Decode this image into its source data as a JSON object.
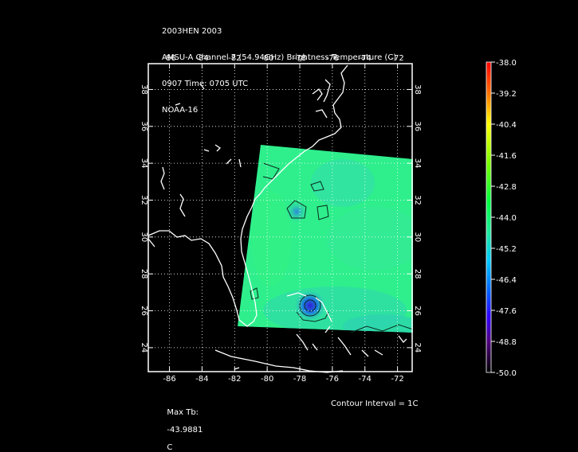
{
  "header": {
    "line1": "2003HEN 2003",
    "line2": "AMSU-A Channel 7 (54.94GHz) Brightness Temperature (C)",
    "line3": "0907 Time: 0705 UTC",
    "line4": "NOAA-16"
  },
  "map": {
    "lon_ticks": [
      "-86",
      "-84",
      "-82",
      "-80",
      "-78",
      "-76",
      "-74",
      "-72"
    ],
    "lat_ticks": [
      "24",
      "26",
      "28",
      "30",
      "32",
      "34",
      "36",
      "38"
    ],
    "lon_range": [
      -87.3,
      -71.1
    ],
    "lat_range": [
      22.7,
      39.4
    ],
    "grid": "dotted"
  },
  "colorbar": {
    "labels": [
      "-38.0",
      "-39.2",
      "-40.4",
      "-41.6",
      "-42.8",
      "-44.0",
      "-45.2",
      "-46.4",
      "-47.6",
      "-48.8",
      "-50.0"
    ],
    "colors": [
      "#ff0000",
      "#ff8000",
      "#ffff00",
      "#a0ff00",
      "#00ff40",
      "#20e8a0",
      "#00c8ff",
      "#0060ff",
      "#3000ff",
      "#500080",
      "#000000"
    ]
  },
  "footer": {
    "max_label": "Max Tb:",
    "max_value": "-43.9881",
    "max_unit": "C",
    "contour": "Contour Interval = 1C"
  }
}
